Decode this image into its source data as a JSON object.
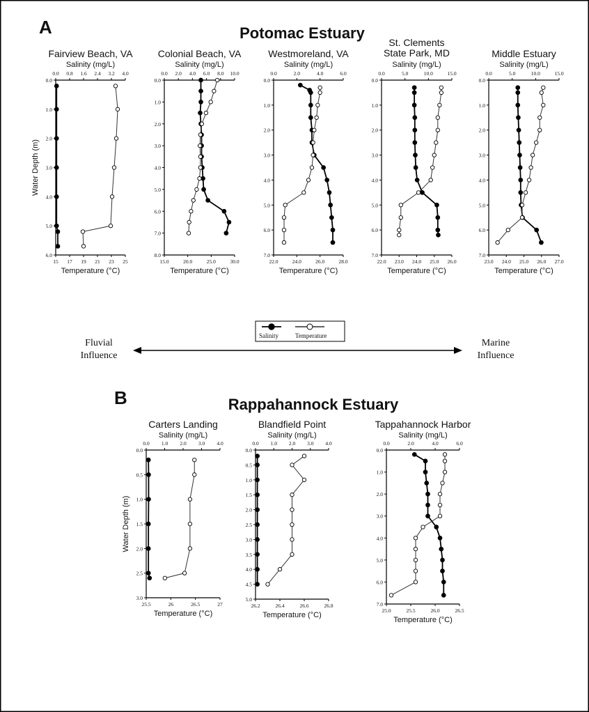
{
  "figure": {
    "panel_a": {
      "letter": "A",
      "title": "Potomac Estuary"
    },
    "panel_b": {
      "letter": "B",
      "title": "Rappahannock Estuary"
    },
    "legend": {
      "salinity": "Salinity",
      "temperature": "Temperature"
    },
    "gradient": {
      "left_line1": "Fluvial",
      "left_line2": "Influence",
      "right_line1": "Marine",
      "right_line2": "Influence"
    },
    "axis_labels": {
      "salinity": "Salinity (mg/L)",
      "temperature": "Temperature (°C)",
      "depth": "Water Depth (m)"
    }
  },
  "chart_data": [
    {
      "type": "line",
      "panel": "A",
      "title": "Fairview Beach, VA",
      "xlabel_top": "Salinity (mg/L)",
      "xlabel_bottom": "Temperature (°C)",
      "ylabel": "Water Depth (m)",
      "sal_range": [
        0,
        4
      ],
      "sal_ticks": [
        "0.0",
        "0.8",
        "1.6",
        "2.4",
        "3.2",
        "4.0"
      ],
      "temp_range": [
        15,
        25
      ],
      "temp_ticks": [
        "15",
        "17",
        "19",
        "21",
        "23",
        "25"
      ],
      "depth_range": [
        0,
        6
      ],
      "depth_ticks": [
        "0.0",
        "1.0",
        "2.0",
        "3.0",
        "4.0",
        "5.0",
        "6.0"
      ],
      "series": [
        {
          "name": "Salinity",
          "axis": "salinity",
          "depth": [
            0.2,
            1.0,
            2.0,
            3.0,
            4.0,
            5.0,
            5.2,
            5.7
          ],
          "values": [
            0.05,
            0.05,
            0.05,
            0.05,
            0.05,
            0.05,
            0.12,
            0.12
          ]
        },
        {
          "name": "Temperature",
          "axis": "temperature",
          "depth": [
            0.2,
            1.0,
            2.0,
            3.0,
            4.0,
            5.0,
            5.2,
            5.7
          ],
          "values": [
            23.6,
            23.9,
            23.7,
            23.4,
            23.1,
            22.9,
            18.9,
            19.0
          ]
        }
      ]
    },
    {
      "type": "line",
      "panel": "A",
      "title": "Colonial Beach, VA",
      "xlabel_top": "Salinity (mg/L)",
      "xlabel_bottom": "Temperature (°C)",
      "ylabel": "",
      "sal_range": [
        0,
        10
      ],
      "sal_ticks": [
        "0.0",
        "2.0",
        "4.0",
        "6.0",
        "8.0",
        "10.0"
      ],
      "temp_range": [
        15,
        30
      ],
      "temp_ticks": [
        "15.0",
        "20.0",
        "25.0",
        "30.0"
      ],
      "depth_range": [
        0,
        8
      ],
      "depth_ticks": [
        "0.0",
        "1.0",
        "2.0",
        "3.0",
        "4.0",
        "5.0",
        "6.0",
        "7.0",
        "8.0"
      ],
      "series": [
        {
          "name": "Salinity",
          "axis": "salinity",
          "depth": [
            0,
            0.5,
            1,
            1.5,
            2,
            2.5,
            3,
            3.5,
            4,
            4.5,
            5,
            5.5,
            6,
            6.5,
            7
          ],
          "values": [
            5.2,
            5.2,
            5.2,
            5.1,
            5.2,
            5.3,
            5.3,
            5.3,
            5.4,
            5.5,
            5.6,
            6.2,
            8.5,
            9.2,
            8.8
          ]
        },
        {
          "name": "Temperature",
          "axis": "temperature",
          "depth": [
            0,
            0.5,
            1,
            1.5,
            2,
            2.5,
            3,
            3.5,
            4,
            4.5,
            5,
            5.5,
            6,
            6.5,
            7
          ],
          "values": [
            26.3,
            25.6,
            24.9,
            23.9,
            23.0,
            22.7,
            22.6,
            22.7,
            22.7,
            22.5,
            21.9,
            21.2,
            20.7,
            20.3,
            20.2
          ]
        }
      ]
    },
    {
      "type": "line",
      "panel": "A",
      "title": "Westmoreland, VA",
      "xlabel_top": "Salinity (mg/L)",
      "xlabel_bottom": "Temperature (°C)",
      "ylabel": "",
      "sal_range": [
        0,
        6
      ],
      "sal_ticks": [
        "0.0",
        "2.0",
        "4.0",
        "6.0"
      ],
      "temp_range": [
        22,
        28
      ],
      "temp_ticks": [
        "22.0",
        "24.0",
        "26.0",
        "28.0"
      ],
      "depth_range": [
        0,
        7
      ],
      "depth_ticks": [
        "0.0",
        "1.0",
        "2.0",
        "3.0",
        "4.0",
        "5.0",
        "6.0",
        "7.0"
      ],
      "series": [
        {
          "name": "Salinity",
          "axis": "salinity",
          "depth": [
            0.2,
            0.4,
            0.5,
            1,
            1.5,
            2,
            2.5,
            3,
            3.5,
            4,
            4.5,
            5,
            5.5,
            6,
            6.5
          ],
          "values": [
            2.3,
            3.1,
            3.2,
            3.2,
            3.2,
            3.3,
            3.3,
            3.5,
            4.3,
            4.6,
            4.8,
            4.9,
            5.0,
            5.1,
            5.1
          ]
        },
        {
          "name": "Temperature",
          "axis": "temperature",
          "depth": [
            0.3,
            0.5,
            1,
            1.5,
            2,
            2.5,
            3,
            3.5,
            4,
            4.5,
            5,
            5.5,
            6,
            6.5
          ],
          "values": [
            26.0,
            26.0,
            25.8,
            25.7,
            25.5,
            25.4,
            25.4,
            25.3,
            25.0,
            24.6,
            23.0,
            22.9,
            22.9,
            22.9
          ]
        }
      ]
    },
    {
      "type": "line",
      "panel": "A",
      "title": "St. Clements State Park, MD",
      "title_lines": [
        "St. Clements",
        "State Park, MD"
      ],
      "xlabel_top": "Salinity (mg/L)",
      "xlabel_bottom": "Temperature (°C)",
      "ylabel": "",
      "sal_range": [
        0,
        15
      ],
      "sal_ticks": [
        "0.0",
        "5.0",
        "10.0",
        "15.0"
      ],
      "temp_range": [
        22,
        26
      ],
      "temp_ticks": [
        "22.0",
        "23.0",
        "24.0",
        "25.0",
        "26.0"
      ],
      "depth_range": [
        0,
        7
      ],
      "depth_ticks": [
        "0.0",
        "1.0",
        "2.0",
        "3.0",
        "4.0",
        "5.0",
        "6.0",
        "7.0"
      ],
      "series": [
        {
          "name": "Salinity",
          "axis": "salinity",
          "depth": [
            0.3,
            0.5,
            1,
            1.5,
            2,
            2.5,
            3,
            3.5,
            4,
            4.5,
            5,
            5.5,
            6,
            6.2
          ],
          "values": [
            7.0,
            7.0,
            7.0,
            7.1,
            7.1,
            7.1,
            7.2,
            7.3,
            7.6,
            8.7,
            11.8,
            12.0,
            12.0,
            12.1
          ]
        },
        {
          "name": "Temperature",
          "axis": "temperature",
          "depth": [
            0.3,
            0.5,
            1,
            1.5,
            2,
            2.5,
            3,
            3.5,
            4,
            4.5,
            5,
            5.5,
            6,
            6.2
          ],
          "values": [
            25.4,
            25.4,
            25.3,
            25.2,
            25.2,
            25.1,
            25.0,
            24.9,
            24.8,
            24.1,
            23.1,
            23.1,
            23.0,
            23.0
          ]
        }
      ]
    },
    {
      "type": "line",
      "panel": "A",
      "title": "Middle Estuary",
      "xlabel_top": "Salinity (mg/L)",
      "xlabel_bottom": "Temperature (°C)",
      "ylabel": "",
      "sal_range": [
        0,
        15
      ],
      "sal_ticks": [
        "0.0",
        "5.0",
        "10.0",
        "15.0"
      ],
      "temp_range": [
        23,
        27
      ],
      "temp_ticks": [
        "23.0",
        "24.0",
        "25.0",
        "26.0",
        "27.0"
      ],
      "depth_range": [
        0,
        7
      ],
      "depth_ticks": [
        "0.0",
        "1.0",
        "2.0",
        "3.0",
        "4.0",
        "5.0",
        "6.0",
        "7.0"
      ],
      "series": [
        {
          "name": "Salinity",
          "axis": "salinity",
          "depth": [
            0.3,
            0.5,
            1,
            1.5,
            2,
            2.5,
            3,
            3.5,
            4,
            4.5,
            5,
            5.5,
            6,
            6.5
          ],
          "values": [
            6.2,
            6.2,
            6.2,
            6.3,
            6.4,
            6.5,
            6.6,
            6.7,
            6.8,
            6.8,
            6.9,
            7.2,
            10.2,
            11.2
          ]
        },
        {
          "name": "Temperature",
          "axis": "temperature",
          "depth": [
            0.3,
            0.5,
            1,
            1.5,
            2,
            2.5,
            3,
            3.5,
            4,
            4.5,
            5,
            5.5,
            6,
            6.5
          ],
          "values": [
            26.1,
            26.0,
            26.1,
            25.9,
            25.9,
            25.7,
            25.5,
            25.4,
            25.3,
            25.1,
            24.9,
            24.9,
            24.1,
            23.5
          ]
        }
      ]
    },
    {
      "type": "line",
      "panel": "B",
      "title": "Carters Landing",
      "xlabel_top": "Salinity (mg/L)",
      "xlabel_bottom": "Temperature (°C)",
      "ylabel": "Water Depth (m)",
      "sal_range": [
        0,
        4
      ],
      "sal_ticks": [
        "0.0",
        "1.0",
        "2.0",
        "3.0",
        "4.0"
      ],
      "temp_range": [
        25.5,
        27
      ],
      "temp_ticks": [
        "25.5",
        "26",
        "26.5",
        "27"
      ],
      "depth_range": [
        0,
        3
      ],
      "depth_ticks": [
        "0.0",
        "0.5",
        "1.0",
        "1.5",
        "2.0",
        "2.5",
        "3.0"
      ],
      "series": [
        {
          "name": "Salinity",
          "axis": "salinity",
          "depth": [
            0.2,
            0.5,
            1.0,
            1.5,
            2.0,
            2.5,
            2.6
          ],
          "values": [
            0.12,
            0.13,
            0.13,
            0.12,
            0.12,
            0.12,
            0.18
          ]
        },
        {
          "name": "Temperature",
          "axis": "temperature",
          "depth": [
            0.2,
            0.5,
            1.0,
            1.5,
            2.0,
            2.5,
            2.6
          ],
          "values": [
            26.48,
            26.48,
            26.39,
            26.39,
            26.39,
            26.28,
            25.88
          ]
        }
      ]
    },
    {
      "type": "line",
      "panel": "B",
      "title": "Blandfield Point",
      "xlabel_top": "Salinity (mg/L)",
      "xlabel_bottom": "Temperature (°C)",
      "ylabel": "",
      "sal_range": [
        0,
        4
      ],
      "sal_ticks": [
        "0.0",
        "1.0",
        "2.0",
        "3.0",
        "4.0"
      ],
      "temp_range": [
        26.2,
        26.8
      ],
      "temp_ticks": [
        "26.2",
        "26.4",
        "26.6",
        "26.8"
      ],
      "depth_range": [
        0,
        5
      ],
      "depth_ticks": [
        "0.0",
        "0.5",
        "1.0",
        "1.5",
        "2.0",
        "2.5",
        "3.0",
        "3.5",
        "4.0",
        "4.5",
        "5.0"
      ],
      "series": [
        {
          "name": "Salinity",
          "axis": "salinity",
          "depth": [
            0.2,
            0.5,
            1,
            1.5,
            2,
            2.5,
            3,
            3.5,
            4,
            4.5
          ],
          "values": [
            0.1,
            0.1,
            0.1,
            0.1,
            0.1,
            0.1,
            0.1,
            0.1,
            0.1,
            0.1
          ]
        },
        {
          "name": "Temperature",
          "axis": "temperature",
          "depth": [
            0.2,
            0.5,
            1,
            1.5,
            2,
            2.5,
            3,
            3.5,
            4,
            4.5
          ],
          "values": [
            26.6,
            26.5,
            26.6,
            26.5,
            26.5,
            26.5,
            26.5,
            26.5,
            26.4,
            26.3
          ]
        }
      ]
    },
    {
      "type": "line",
      "panel": "B",
      "title": "Tappahannock Harbor",
      "xlabel_top": "Salinity (mg/L)",
      "xlabel_bottom": "Temperature (°C)",
      "ylabel": "",
      "sal_range": [
        0,
        6
      ],
      "sal_ticks": [
        "0.0",
        "2.0",
        "4.0",
        "6.0"
      ],
      "temp_range": [
        25,
        26.5
      ],
      "temp_ticks": [
        "25.0",
        "25.5",
        "26.0",
        "26.5"
      ],
      "depth_range": [
        0,
        7
      ],
      "depth_ticks": [
        "0.0",
        "1.0",
        "2.0",
        "3.0",
        "4.0",
        "5.0",
        "6.0",
        "7.0"
      ],
      "series": [
        {
          "name": "Salinity",
          "axis": "salinity",
          "depth": [
            0.2,
            0.5,
            1,
            1.5,
            2,
            2.5,
            3,
            3.5,
            4,
            4.5,
            5,
            5.5,
            6,
            6.6
          ],
          "values": [
            2.3,
            3.2,
            3.2,
            3.3,
            3.4,
            3.4,
            3.4,
            4.1,
            4.4,
            4.5,
            4.6,
            4.6,
            4.7,
            4.7
          ]
        },
        {
          "name": "Temperature",
          "axis": "temperature",
          "depth": [
            0.2,
            0.5,
            1,
            1.5,
            2,
            2.5,
            3,
            3.5,
            4,
            4.5,
            5,
            5.5,
            6,
            6.6
          ],
          "values": [
            26.2,
            26.2,
            26.2,
            26.15,
            26.1,
            26.1,
            26.1,
            25.75,
            25.6,
            25.6,
            25.6,
            25.6,
            25.6,
            25.1
          ]
        }
      ]
    }
  ]
}
